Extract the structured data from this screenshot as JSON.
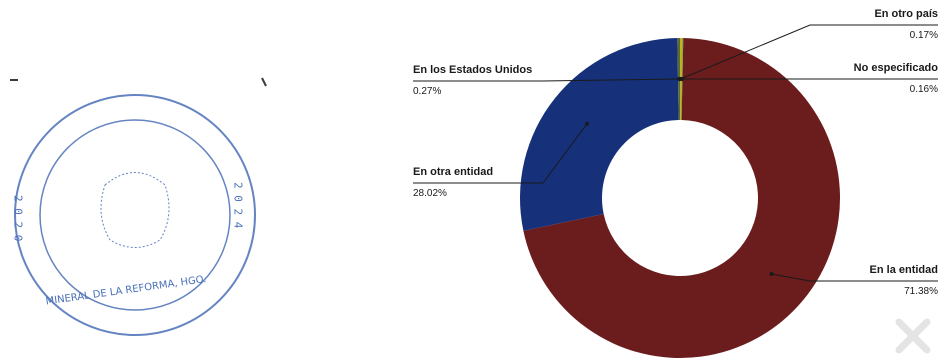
{
  "stamp": {
    "text_top_left": "2 0 2 0",
    "text_top_right": "2 0 2 4",
    "text_bottom": "MINERAL DE LA REFORMA, HGO."
  },
  "chart_data": {
    "type": "pie",
    "donut": true,
    "title": "",
    "slices": [
      {
        "label": "En otro país",
        "value": 0.17,
        "display": "0.17%",
        "color": "#c9b400"
      },
      {
        "label": "No especificado",
        "value": 0.16,
        "display": "0.16%",
        "color": "#8aa44c"
      },
      {
        "label": "En la entidad",
        "value": 71.38,
        "display": "71.38%",
        "color": "#6b1c1c"
      },
      {
        "label": "En otra entidad",
        "value": 28.02,
        "display": "28.02%",
        "color": "#16307a"
      },
      {
        "label": "En los Estados Unidos",
        "value": 0.27,
        "display": "0.27%",
        "color": "#5a6a3a"
      }
    ],
    "legend": "callout-labels"
  }
}
